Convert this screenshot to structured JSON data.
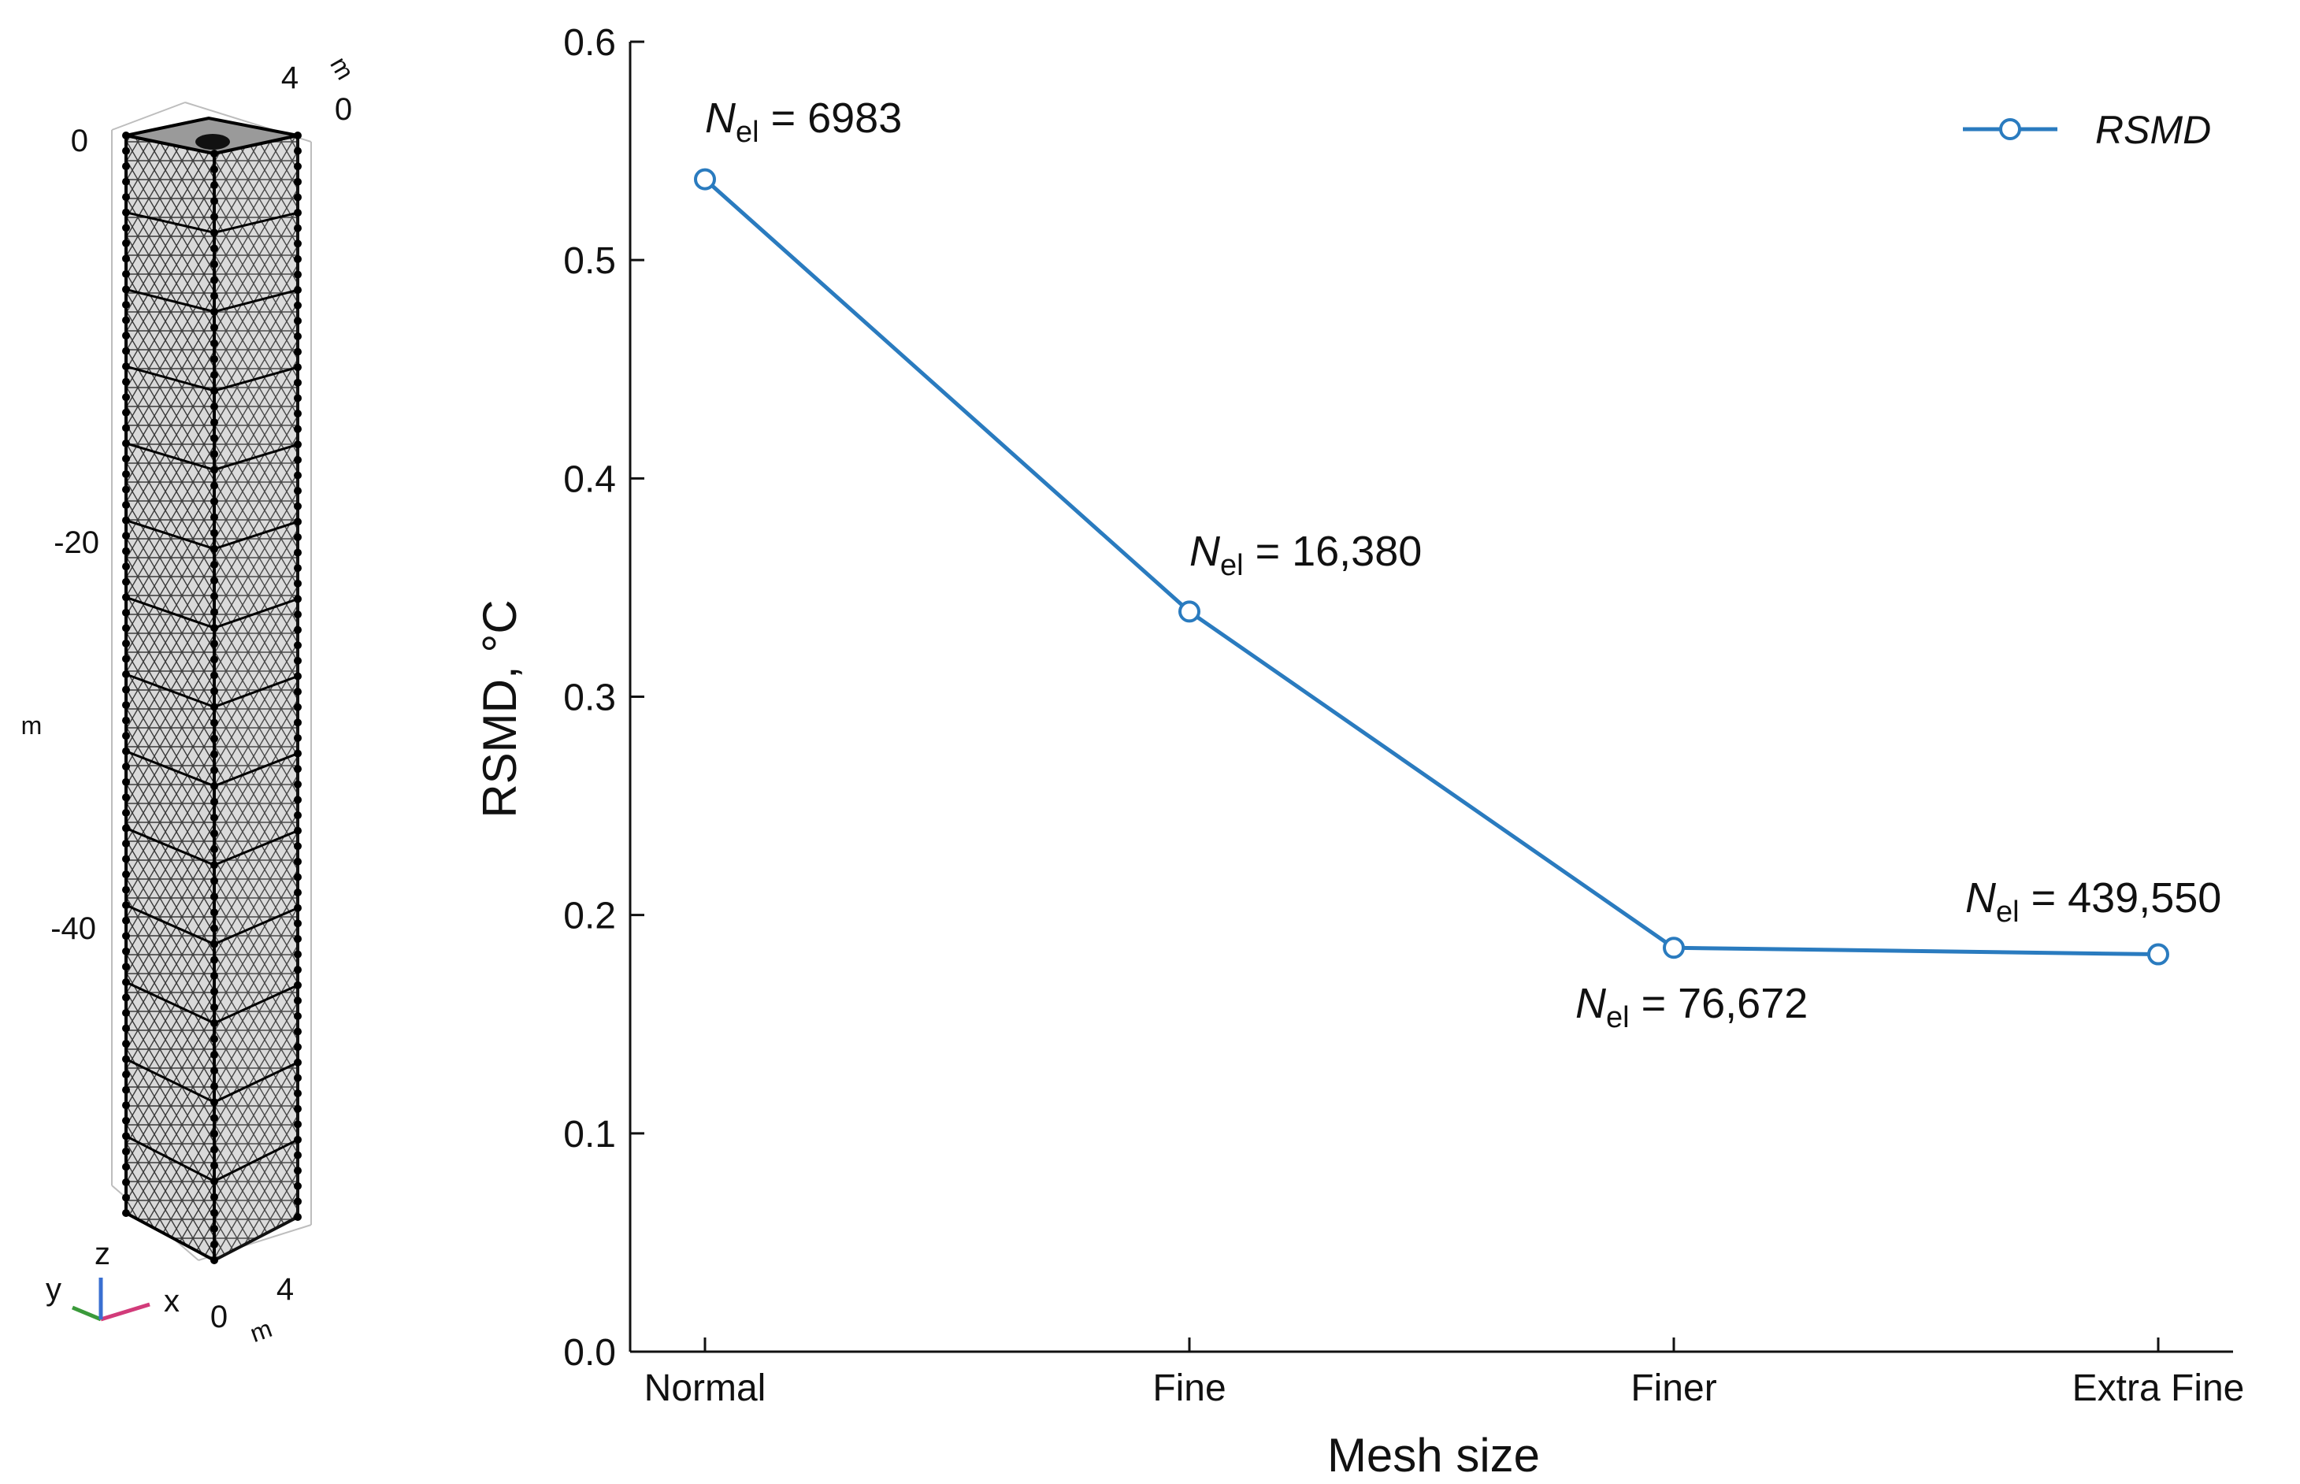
{
  "chart_data": {
    "type": "line",
    "title": "",
    "xlabel": "Mesh size",
    "ylabel": "RSMD, °C",
    "categories": [
      "Normal",
      "Fine",
      "Finer",
      "Extra Fine"
    ],
    "series": [
      {
        "name": "RSMD",
        "values": [
          0.537,
          0.339,
          0.185,
          0.182
        ],
        "color": "#2a7bbf"
      }
    ],
    "ylim": [
      0.0,
      0.6
    ],
    "yticks": [
      "0.0",
      "0.1",
      "0.2",
      "0.3",
      "0.4",
      "0.5",
      "0.6"
    ],
    "legend_position": "top-right",
    "annotations": [
      {
        "prefix": "N",
        "sub": "el",
        "text": " = 6983"
      },
      {
        "prefix": "N",
        "sub": "el",
        "text": " = 16,380"
      },
      {
        "prefix": "N",
        "sub": "el",
        "text": " = 76,672"
      },
      {
        "prefix": "N",
        "sub": "el",
        "text": " = 439,550"
      }
    ]
  },
  "mesh_view": {
    "z_ticks": [
      "0",
      "-20",
      "-40"
    ],
    "z_unit": "m",
    "top_ticks": [
      "4",
      "0"
    ],
    "top_unit": "m",
    "bottom_ticks": [
      "0",
      "4"
    ],
    "bottom_unit": "m",
    "triad": {
      "x": "x",
      "y": "y",
      "z": "z"
    },
    "colors": {
      "x": "#d23b7a",
      "y": "#3a9a3a",
      "z": "#3a6fd1"
    }
  }
}
